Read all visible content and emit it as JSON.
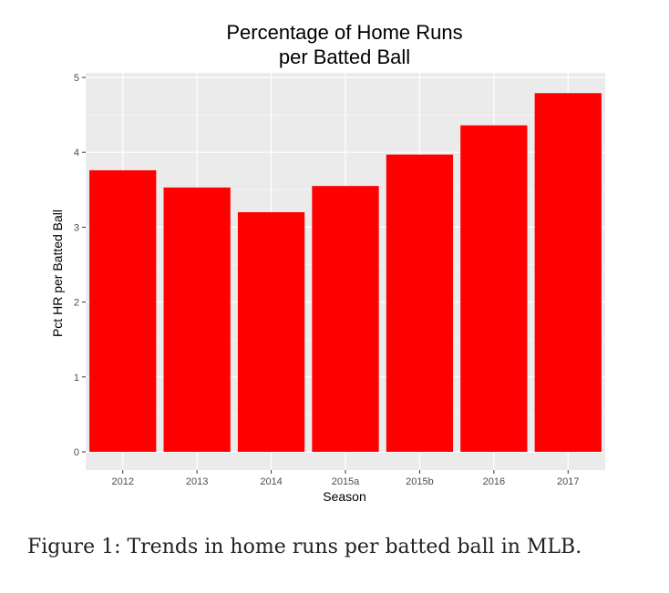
{
  "chart_data": {
    "type": "bar",
    "title_lines": [
      "Percentage of Home Runs",
      "per Batted Ball"
    ],
    "xlabel": "Season",
    "ylabel": "Pct HR per Batted Ball",
    "categories": [
      "2012",
      "2013",
      "2014",
      "2015a",
      "2015b",
      "2016",
      "2017"
    ],
    "values": [
      3.76,
      3.53,
      3.2,
      3.55,
      3.97,
      4.36,
      4.79
    ],
    "ylim": [
      0,
      5
    ],
    "yticks": [
      0,
      1,
      2,
      3,
      4,
      5
    ],
    "bar_color": "#ff0000",
    "panel_background": "#ebebeb",
    "grid": true,
    "legend": "none"
  },
  "caption": "Figure 1: Trends in home runs per batted ball in MLB."
}
